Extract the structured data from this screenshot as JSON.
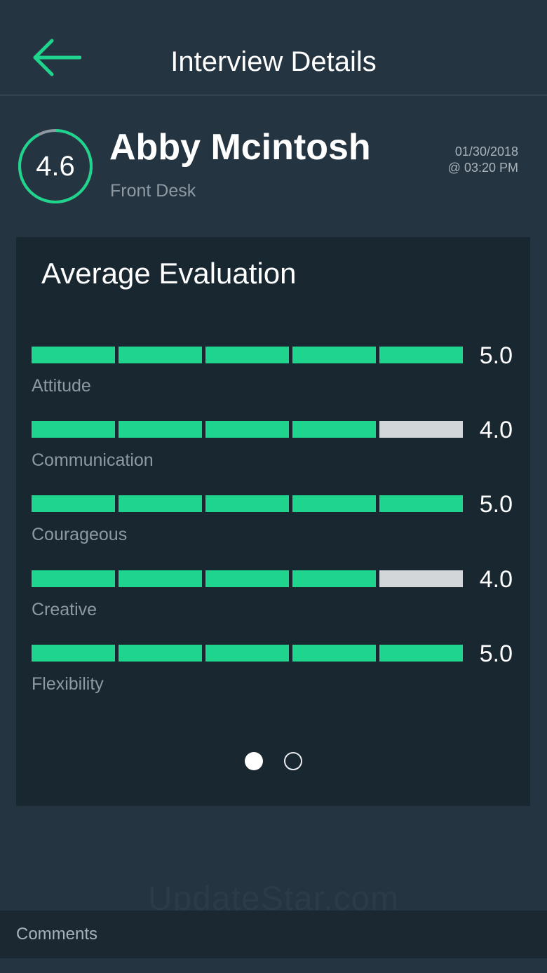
{
  "header": {
    "title": "Interview Details",
    "back_icon": "arrow-left-icon"
  },
  "profile": {
    "score": "4.6",
    "score_fraction": 0.92,
    "name": "Abby Mcintosh",
    "role": "Front Desk",
    "date": "01/30/2018",
    "time": "@ 03:20 PM"
  },
  "evaluation": {
    "title": "Average Evaluation",
    "max_score": 5,
    "items": [
      {
        "label": "Attitude",
        "score": "5.0",
        "value": 5
      },
      {
        "label": "Communication",
        "score": "4.0",
        "value": 4
      },
      {
        "label": "Courageous",
        "score": "5.0",
        "value": 5
      },
      {
        "label": "Creative",
        "score": "4.0",
        "value": 4
      },
      {
        "label": "Flexibility",
        "score": "5.0",
        "value": 5
      }
    ],
    "pager": {
      "pages": 2,
      "current": 1
    }
  },
  "watermark": "UpdateStar.com",
  "comments": {
    "label": "Comments"
  },
  "colors": {
    "accent": "#1fd48c",
    "segment_off": "#d3d6d8",
    "ring_track": "#8e99a2"
  }
}
